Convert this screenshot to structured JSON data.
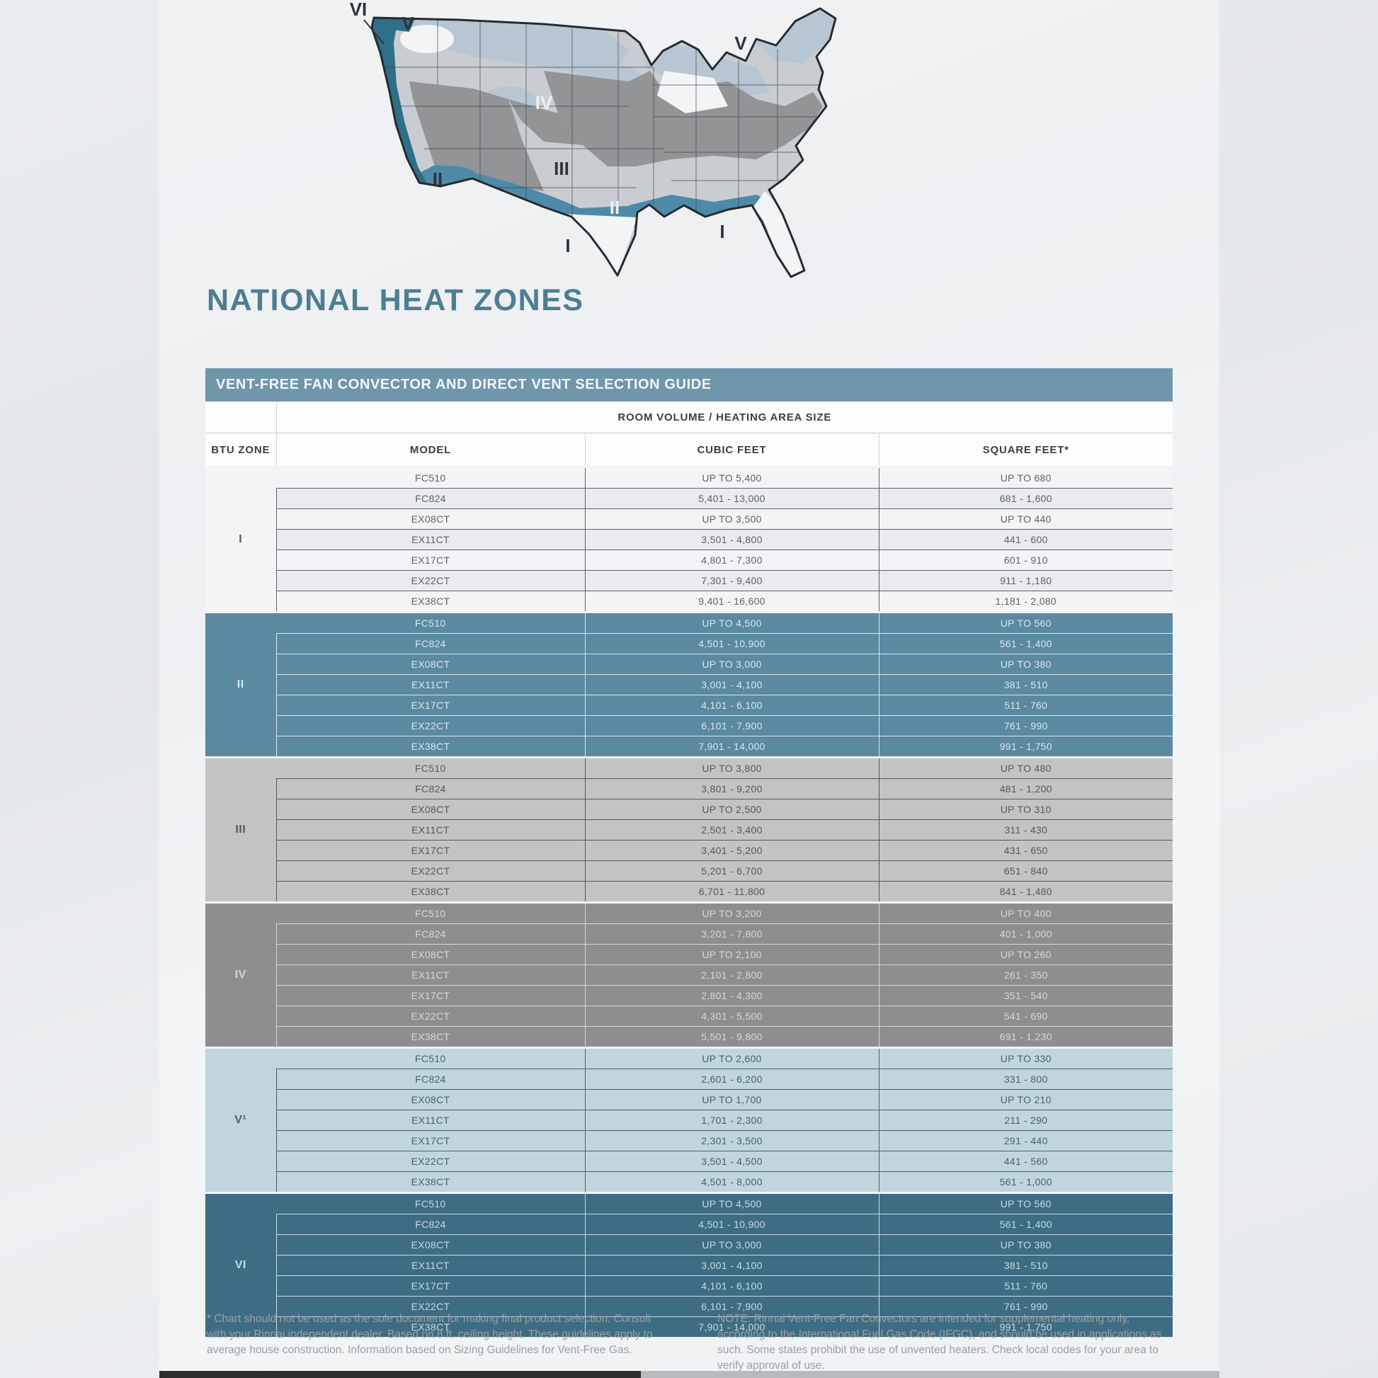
{
  "page": {
    "title": "NATIONAL HEAT ZONES"
  },
  "map": {
    "name": "us-national-heat-zones-map",
    "labels": [
      {
        "text": "VI"
      },
      {
        "text": "V"
      },
      {
        "text": "V"
      },
      {
        "text": "IV"
      },
      {
        "text": "III"
      },
      {
        "text": "II"
      },
      {
        "text": "II"
      },
      {
        "text": "I"
      },
      {
        "text": "I"
      }
    ]
  },
  "table": {
    "header": "VENT-FREE FAN CONVECTOR AND DIRECT VENT SELECTION GUIDE",
    "group_header": "ROOM VOLUME / HEATING AREA SIZE",
    "columns": [
      "BTU ZONE",
      "MODEL",
      "CUBIC FEET",
      "SQUARE FEET*"
    ],
    "zones": [
      {
        "zone": "I",
        "rows": [
          {
            "model": "FC510",
            "cubic": "UP TO 5,400",
            "square": "UP TO 680"
          },
          {
            "model": "FC824",
            "cubic": "5,401 - 13,000",
            "square": "681 - 1,600"
          },
          {
            "model": "EX08CT",
            "cubic": "UP TO 3,500",
            "square": "UP TO 440"
          },
          {
            "model": "EX11CT",
            "cubic": "3,501 - 4,800",
            "square": "441 - 600"
          },
          {
            "model": "EX17CT",
            "cubic": "4,801 - 7,300",
            "square": "601 - 910"
          },
          {
            "model": "EX22CT",
            "cubic": "7,301 - 9,400",
            "square": "911 - 1,180"
          },
          {
            "model": "EX38CT",
            "cubic": "9,401 - 16,600",
            "square": "1,181 - 2,080"
          }
        ]
      },
      {
        "zone": "II",
        "rows": [
          {
            "model": "FC510",
            "cubic": "UP TO 4,500",
            "square": "UP TO 560"
          },
          {
            "model": "FC824",
            "cubic": "4,501 - 10,900",
            "square": "561 - 1,400"
          },
          {
            "model": "EX08CT",
            "cubic": "UP TO 3,000",
            "square": "UP TO 380"
          },
          {
            "model": "EX11CT",
            "cubic": "3,001 - 4,100",
            "square": "381 - 510"
          },
          {
            "model": "EX17CT",
            "cubic": "4,101 - 6,100",
            "square": "511 - 760"
          },
          {
            "model": "EX22CT",
            "cubic": "6,101 - 7,900",
            "square": "761 - 990"
          },
          {
            "model": "EX38CT",
            "cubic": "7,901 - 14,000",
            "square": "991 - 1,750"
          }
        ]
      },
      {
        "zone": "III",
        "rows": [
          {
            "model": "FC510",
            "cubic": "UP TO 3,800",
            "square": "UP TO 480"
          },
          {
            "model": "FC824",
            "cubic": "3,801 - 9,200",
            "square": "481 - 1,200"
          },
          {
            "model": "EX08CT",
            "cubic": "UP TO 2,500",
            "square": "UP TO 310"
          },
          {
            "model": "EX11CT",
            "cubic": "2,501 - 3,400",
            "square": "311 - 430"
          },
          {
            "model": "EX17CT",
            "cubic": "3,401 - 5,200",
            "square": "431 - 650"
          },
          {
            "model": "EX22CT",
            "cubic": "5,201 - 6,700",
            "square": "651 - 840"
          },
          {
            "model": "EX38CT",
            "cubic": "6,701 - 11,800",
            "square": "841 - 1,480"
          }
        ]
      },
      {
        "zone": "IV",
        "rows": [
          {
            "model": "FC510",
            "cubic": "UP TO 3,200",
            "square": "UP TO 400"
          },
          {
            "model": "FC824",
            "cubic": "3,201 - 7,800",
            "square": "401 - 1,000"
          },
          {
            "model": "EX08CT",
            "cubic": "UP TO 2,100",
            "square": "UP TO 260"
          },
          {
            "model": "EX11CT",
            "cubic": "2,101 - 2,800",
            "square": "261 - 350"
          },
          {
            "model": "EX17CT",
            "cubic": "2,801 - 4,300",
            "square": "351 - 540"
          },
          {
            "model": "EX22CT",
            "cubic": "4,301 - 5,500",
            "square": "541 - 690"
          },
          {
            "model": "EX38CT",
            "cubic": "5,501 - 9,800",
            "square": "691 - 1,230"
          }
        ]
      },
      {
        "zone": "V¹",
        "rows": [
          {
            "model": "FC510",
            "cubic": "UP TO 2,600",
            "square": "UP TO 330"
          },
          {
            "model": "FC824",
            "cubic": "2,601 - 6,200",
            "square": "331 - 800"
          },
          {
            "model": "EX08CT",
            "cubic": "UP TO 1,700",
            "square": "UP TO 210"
          },
          {
            "model": "EX11CT",
            "cubic": "1,701 - 2,300",
            "square": "211 - 290"
          },
          {
            "model": "EX17CT",
            "cubic": "2,301 - 3,500",
            "square": "291 - 440"
          },
          {
            "model": "EX22CT",
            "cubic": "3,501 - 4,500",
            "square": "441 - 560"
          },
          {
            "model": "EX38CT",
            "cubic": "4,501 - 8,000",
            "square": "561 - 1,000"
          }
        ]
      },
      {
        "zone": "VI",
        "rows": [
          {
            "model": "FC510",
            "cubic": "UP TO 4,500",
            "square": "UP TO 560"
          },
          {
            "model": "FC824",
            "cubic": "4,501 - 10,900",
            "square": "561 - 1,400"
          },
          {
            "model": "EX08CT",
            "cubic": "UP TO 3,000",
            "square": "UP TO 380"
          },
          {
            "model": "EX11CT",
            "cubic": "3,001 - 4,100",
            "square": "381 - 510"
          },
          {
            "model": "EX17CT",
            "cubic": "4,101 - 6,100",
            "square": "511 - 760"
          },
          {
            "model": "EX22CT",
            "cubic": "6,101 - 7,900",
            "square": "761 - 990"
          },
          {
            "model": "EX38CT",
            "cubic": "7,901 - 14,000",
            "square": "991 - 1,750"
          }
        ]
      }
    ]
  },
  "footnotes": {
    "left": "* Chart should not be used as the sole document for making final product selection. Consult with your Rinnai independent dealer. Based on 8 ft. ceiling height. These guidelines apply to average house construction. Information based on Sizing Guidelines for Vent-Free Gas.",
    "right": "NOTE: Rinnai Vent-Free Fan Convectors are intended for supplemental heating only, according to the International Fuel Gas Code (IFGC), and should be used in applications as such. Some states prohibit the use of unvented heaters. Check local codes for your area to verify approval of use."
  },
  "colors": {
    "title": "#4d7e92",
    "header_bar": "#6f96ab",
    "zone1_bg": "#f3f4f6",
    "zone1_alt": "#e9ebee",
    "zone1_text": "#5f6265",
    "zone2_bg": "#5a89a0",
    "zone2_text": "#d9e7ed",
    "zone3_bg": "#c2c3c5",
    "zone3_text": "#57585a",
    "zone4_bg": "#8d8e90",
    "zone4_text": "#d6d7d9",
    "zone5_bg": "#c0d5de",
    "zone5_text": "#4a626e",
    "zone6_bg": "#3e6d83",
    "zone6_text": "#c5dae3",
    "map_blue": "#4e8aa8",
    "map_teal": "#2f6f88",
    "map_dark": "#939496",
    "map_pale": "#b7c6d2",
    "map_light": "#c9cdd1",
    "map_white": "#f3f4f6"
  }
}
